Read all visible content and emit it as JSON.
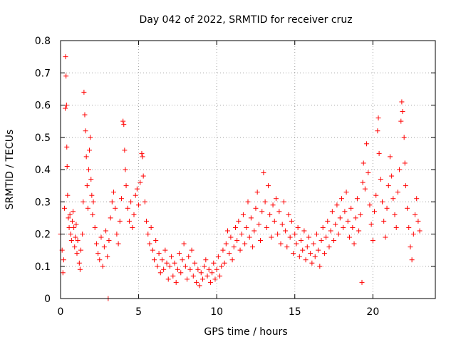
{
  "chart_data": {
    "type": "scatter",
    "title": "Day 042 of 2022, SRMTID for receiver cruz",
    "xlabel": "GPS time / hours",
    "ylabel": "SRMTID / TECUs",
    "xlim": [
      0,
      24
    ],
    "ylim": [
      0,
      0.8
    ],
    "x_ticks": [
      0,
      5,
      10,
      15,
      20
    ],
    "x_tick_labels": [
      "0",
      "5",
      "10",
      "15",
      "20"
    ],
    "y_ticks": [
      0,
      0.1,
      0.2,
      0.3,
      0.4,
      0.5,
      0.6,
      0.7,
      0.8
    ],
    "y_tick_labels": [
      "0",
      "0.1",
      "0.2",
      "0.3",
      "0.4",
      "0.5",
      "0.6",
      "0.7",
      "0.8"
    ],
    "grid": true,
    "marker": "+",
    "marker_color": "#ff0000",
    "series": [
      {
        "name": "SRMTID",
        "points": [
          [
            0.0,
            0.2
          ],
          [
            0.1,
            0.15
          ],
          [
            0.15,
            0.08
          ],
          [
            0.2,
            0.12
          ],
          [
            0.25,
            0.28
          ],
          [
            0.3,
            0.59
          ],
          [
            0.32,
            0.75
          ],
          [
            0.35,
            0.69
          ],
          [
            0.38,
            0.6
          ],
          [
            0.4,
            0.47
          ],
          [
            0.42,
            0.41
          ],
          [
            0.45,
            0.32
          ],
          [
            0.5,
            0.25
          ],
          [
            0.55,
            0.22
          ],
          [
            0.6,
            0.26
          ],
          [
            0.65,
            0.2
          ],
          [
            0.7,
            0.18
          ],
          [
            0.75,
            0.24
          ],
          [
            0.8,
            0.27
          ],
          [
            0.85,
            0.22
          ],
          [
            0.9,
            0.16
          ],
          [
            0.95,
            0.19
          ],
          [
            1.0,
            0.23
          ],
          [
            1.05,
            0.14
          ],
          [
            1.1,
            0.18
          ],
          [
            1.2,
            0.11
          ],
          [
            1.25,
            0.09
          ],
          [
            1.3,
            0.15
          ],
          [
            1.4,
            0.2
          ],
          [
            1.45,
            0.3
          ],
          [
            1.5,
            0.64
          ],
          [
            1.55,
            0.57
          ],
          [
            1.6,
            0.52
          ],
          [
            1.65,
            0.44
          ],
          [
            1.7,
            0.35
          ],
          [
            1.75,
            0.28
          ],
          [
            1.8,
            0.4
          ],
          [
            1.85,
            0.46
          ],
          [
            1.9,
            0.5
          ],
          [
            1.95,
            0.37
          ],
          [
            2.0,
            0.32
          ],
          [
            2.05,
            0.26
          ],
          [
            2.1,
            0.3
          ],
          [
            2.2,
            0.22
          ],
          [
            2.3,
            0.17
          ],
          [
            2.4,
            0.14
          ],
          [
            2.5,
            0.12
          ],
          [
            2.6,
            0.19
          ],
          [
            2.7,
            0.1
          ],
          [
            2.8,
            0.16
          ],
          [
            2.9,
            0.21
          ],
          [
            3.0,
            0.13
          ],
          [
            3.05,
            0.0
          ],
          [
            3.1,
            0.18
          ],
          [
            3.2,
            0.25
          ],
          [
            3.3,
            0.3
          ],
          [
            3.4,
            0.33
          ],
          [
            3.5,
            0.28
          ],
          [
            3.6,
            0.2
          ],
          [
            3.7,
            0.17
          ],
          [
            3.8,
            0.24
          ],
          [
            3.9,
            0.31
          ],
          [
            4.0,
            0.55
          ],
          [
            4.05,
            0.54
          ],
          [
            4.1,
            0.46
          ],
          [
            4.15,
            0.4
          ],
          [
            4.2,
            0.35
          ],
          [
            4.3,
            0.28
          ],
          [
            4.4,
            0.24
          ],
          [
            4.5,
            0.3
          ],
          [
            4.6,
            0.22
          ],
          [
            4.7,
            0.26
          ],
          [
            4.8,
            0.32
          ],
          [
            4.9,
            0.34
          ],
          [
            5.0,
            0.29
          ],
          [
            5.1,
            0.36
          ],
          [
            5.2,
            0.45
          ],
          [
            5.25,
            0.44
          ],
          [
            5.3,
            0.38
          ],
          [
            5.4,
            0.3
          ],
          [
            5.5,
            0.24
          ],
          [
            5.6,
            0.2
          ],
          [
            5.7,
            0.17
          ],
          [
            5.8,
            0.22
          ],
          [
            5.9,
            0.15
          ],
          [
            6.0,
            0.12
          ],
          [
            6.1,
            0.18
          ],
          [
            6.2,
            0.1
          ],
          [
            6.3,
            0.14
          ],
          [
            6.4,
            0.08
          ],
          [
            6.5,
            0.12
          ],
          [
            6.6,
            0.09
          ],
          [
            6.7,
            0.15
          ],
          [
            6.8,
            0.11
          ],
          [
            6.9,
            0.06
          ],
          [
            7.0,
            0.1
          ],
          [
            7.1,
            0.13
          ],
          [
            7.2,
            0.07
          ],
          [
            7.3,
            0.11
          ],
          [
            7.4,
            0.05
          ],
          [
            7.5,
            0.09
          ],
          [
            7.6,
            0.14
          ],
          [
            7.7,
            0.08
          ],
          [
            7.8,
            0.12
          ],
          [
            7.9,
            0.17
          ],
          [
            8.0,
            0.1
          ],
          [
            8.1,
            0.06
          ],
          [
            8.2,
            0.13
          ],
          [
            8.3,
            0.09
          ],
          [
            8.4,
            0.15
          ],
          [
            8.5,
            0.07
          ],
          [
            8.6,
            0.11
          ],
          [
            8.7,
            0.05
          ],
          [
            8.8,
            0.09
          ],
          [
            8.9,
            0.04
          ],
          [
            9.0,
            0.08
          ],
          [
            9.1,
            0.06
          ],
          [
            9.2,
            0.1
          ],
          [
            9.3,
            0.12
          ],
          [
            9.4,
            0.07
          ],
          [
            9.5,
            0.09
          ],
          [
            9.6,
            0.05
          ],
          [
            9.7,
            0.08
          ],
          [
            9.8,
            0.11
          ],
          [
            9.9,
            0.06
          ],
          [
            10.0,
            0.09
          ],
          [
            10.1,
            0.13
          ],
          [
            10.2,
            0.07
          ],
          [
            10.3,
            0.1
          ],
          [
            10.4,
            0.15
          ],
          [
            10.5,
            0.11
          ],
          [
            10.6,
            0.17
          ],
          [
            10.7,
            0.21
          ],
          [
            10.8,
            0.14
          ],
          [
            10.9,
            0.19
          ],
          [
            11.0,
            0.12
          ],
          [
            11.1,
            0.16
          ],
          [
            11.2,
            0.22
          ],
          [
            11.3,
            0.18
          ],
          [
            11.4,
            0.24
          ],
          [
            11.5,
            0.15
          ],
          [
            11.6,
            0.2
          ],
          [
            11.7,
            0.26
          ],
          [
            11.8,
            0.17
          ],
          [
            11.9,
            0.22
          ],
          [
            12.0,
            0.3
          ],
          [
            12.1,
            0.19
          ],
          [
            12.2,
            0.25
          ],
          [
            12.3,
            0.16
          ],
          [
            12.4,
            0.21
          ],
          [
            12.5,
            0.28
          ],
          [
            12.6,
            0.33
          ],
          [
            12.7,
            0.23
          ],
          [
            12.8,
            0.18
          ],
          [
            12.9,
            0.27
          ],
          [
            13.0,
            0.39
          ],
          [
            13.1,
            0.3
          ],
          [
            13.2,
            0.22
          ],
          [
            13.3,
            0.35
          ],
          [
            13.4,
            0.26
          ],
          [
            13.5,
            0.19
          ],
          [
            13.6,
            0.29
          ],
          [
            13.7,
            0.24
          ],
          [
            13.8,
            0.31
          ],
          [
            13.9,
            0.2
          ],
          [
            14.0,
            0.27
          ],
          [
            14.1,
            0.17
          ],
          [
            14.2,
            0.23
          ],
          [
            14.3,
            0.3
          ],
          [
            14.4,
            0.21
          ],
          [
            14.5,
            0.16
          ],
          [
            14.6,
            0.26
          ],
          [
            14.7,
            0.19
          ],
          [
            14.8,
            0.24
          ],
          [
            14.9,
            0.14
          ],
          [
            15.0,
            0.2
          ],
          [
            15.1,
            0.17
          ],
          [
            15.2,
            0.22
          ],
          [
            15.3,
            0.13
          ],
          [
            15.4,
            0.18
          ],
          [
            15.5,
            0.15
          ],
          [
            15.6,
            0.21
          ],
          [
            15.7,
            0.12
          ],
          [
            15.8,
            0.16
          ],
          [
            15.9,
            0.19
          ],
          [
            16.0,
            0.14
          ],
          [
            16.1,
            0.11
          ],
          [
            16.2,
            0.17
          ],
          [
            16.3,
            0.13
          ],
          [
            16.4,
            0.2
          ],
          [
            16.5,
            0.15
          ],
          [
            16.6,
            0.1
          ],
          [
            16.7,
            0.18
          ],
          [
            16.8,
            0.22
          ],
          [
            16.9,
            0.14
          ],
          [
            17.0,
            0.19
          ],
          [
            17.1,
            0.24
          ],
          [
            17.2,
            0.16
          ],
          [
            17.3,
            0.21
          ],
          [
            17.4,
            0.27
          ],
          [
            17.5,
            0.18
          ],
          [
            17.6,
            0.23
          ],
          [
            17.7,
            0.29
          ],
          [
            17.8,
            0.2
          ],
          [
            17.9,
            0.25
          ],
          [
            18.0,
            0.31
          ],
          [
            18.1,
            0.22
          ],
          [
            18.2,
            0.27
          ],
          [
            18.3,
            0.33
          ],
          [
            18.4,
            0.24
          ],
          [
            18.5,
            0.19
          ],
          [
            18.6,
            0.28
          ],
          [
            18.7,
            0.22
          ],
          [
            18.8,
            0.17
          ],
          [
            18.9,
            0.25
          ],
          [
            19.0,
            0.31
          ],
          [
            19.1,
            0.21
          ],
          [
            19.2,
            0.26
          ],
          [
            19.3,
            0.05
          ],
          [
            19.35,
            0.36
          ],
          [
            19.4,
            0.42
          ],
          [
            19.5,
            0.34
          ],
          [
            19.6,
            0.48
          ],
          [
            19.7,
            0.39
          ],
          [
            19.8,
            0.29
          ],
          [
            19.9,
            0.23
          ],
          [
            20.0,
            0.18
          ],
          [
            20.1,
            0.27
          ],
          [
            20.2,
            0.32
          ],
          [
            20.3,
            0.52
          ],
          [
            20.35,
            0.56
          ],
          [
            20.4,
            0.45
          ],
          [
            20.5,
            0.37
          ],
          [
            20.6,
            0.3
          ],
          [
            20.7,
            0.24
          ],
          [
            20.8,
            0.19
          ],
          [
            20.9,
            0.28
          ],
          [
            21.0,
            0.35
          ],
          [
            21.1,
            0.44
          ],
          [
            21.2,
            0.38
          ],
          [
            21.3,
            0.31
          ],
          [
            21.4,
            0.26
          ],
          [
            21.5,
            0.22
          ],
          [
            21.6,
            0.33
          ],
          [
            21.7,
            0.4
          ],
          [
            21.8,
            0.55
          ],
          [
            21.85,
            0.61
          ],
          [
            21.9,
            0.58
          ],
          [
            22.0,
            0.5
          ],
          [
            22.05,
            0.42
          ],
          [
            22.1,
            0.35
          ],
          [
            22.2,
            0.28
          ],
          [
            22.3,
            0.22
          ],
          [
            22.4,
            0.16
          ],
          [
            22.5,
            0.12
          ],
          [
            22.6,
            0.2
          ],
          [
            22.7,
            0.26
          ],
          [
            22.8,
            0.31
          ],
          [
            22.9,
            0.24
          ],
          [
            23.0,
            0.21
          ]
        ]
      }
    ]
  }
}
